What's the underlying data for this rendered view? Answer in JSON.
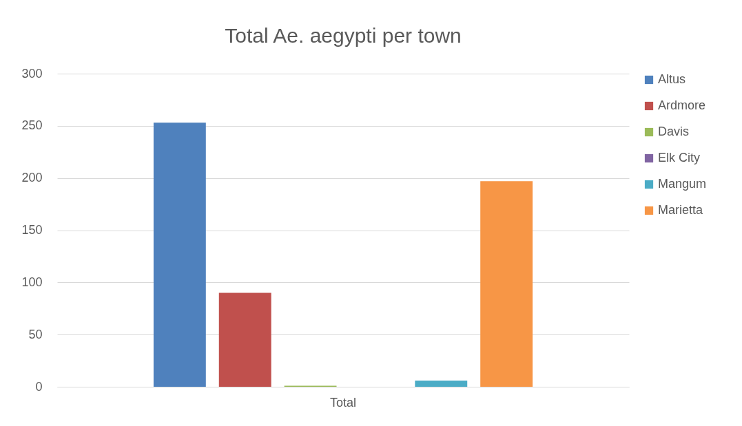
{
  "chart_data": {
    "type": "bar",
    "title": "Total Ae. aegypti per town",
    "categories": [
      "Total"
    ],
    "series": [
      {
        "name": "Altus",
        "color": "#4f81bd",
        "values": [
          253
        ]
      },
      {
        "name": "Ardmore",
        "color": "#c0504d",
        "values": [
          90
        ]
      },
      {
        "name": "Davis",
        "color": "#9bbb59",
        "values": [
          1
        ]
      },
      {
        "name": "Elk City",
        "color": "#8064a2",
        "values": [
          0
        ]
      },
      {
        "name": "Mangum",
        "color": "#4bacc6",
        "values": [
          6
        ]
      },
      {
        "name": "Marietta",
        "color": "#f79646",
        "values": [
          197
        ]
      }
    ],
    "ylim": [
      0,
      300
    ],
    "yticks": [
      0,
      50,
      100,
      150,
      200,
      250,
      300
    ],
    "grid": "y",
    "legend": "right"
  }
}
